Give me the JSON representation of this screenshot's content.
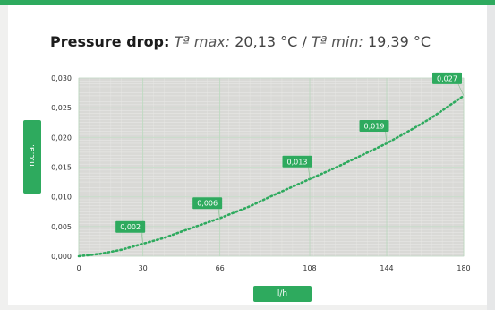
{
  "header": {
    "title_label": "Pressure drop:",
    "tmax_label": "Tª max:",
    "tmax_value": "20,13 °C",
    "separator": "/",
    "tmin_label": "Tª min:",
    "tmin_value": "19,39 °C"
  },
  "colors": {
    "accent": "#2eaa5e",
    "curve": "#2eaa5e",
    "plot_bg": "#d9d9d6"
  },
  "chart_data": {
    "type": "line",
    "title": "",
    "xlabel": "l/h",
    "ylabel": "m.c.a.",
    "xlim": [
      0,
      180
    ],
    "ylim": [
      0,
      0.03
    ],
    "x_ticks": [
      0,
      30,
      66,
      108,
      144,
      180
    ],
    "x_tick_labels": [
      "0",
      "30",
      "66",
      "108",
      "144",
      "180"
    ],
    "y_ticks": [
      0,
      0.005,
      0.01,
      0.015,
      0.02,
      0.025,
      0.03
    ],
    "y_tick_labels": [
      "0,000",
      "0,005",
      "0,010",
      "0,015",
      "0,020",
      "0,025",
      "0,030"
    ],
    "grid": true,
    "series": [
      {
        "style": "dotted",
        "x": [
          0,
          10,
          20,
          30,
          40,
          50,
          66,
          80,
          90,
          108,
          120,
          130,
          144,
          155,
          165,
          180
        ],
        "y": [
          0,
          0.0004,
          0.0011,
          0.0021,
          0.0031,
          0.0044,
          0.0064,
          0.0084,
          0.0101,
          0.013,
          0.0149,
          0.0166,
          0.019,
          0.0212,
          0.0233,
          0.027
        ]
      }
    ],
    "annotations": [
      {
        "x": 30,
        "y": 0.002,
        "text": "0,002"
      },
      {
        "x": 66,
        "y": 0.006,
        "text": "0,006"
      },
      {
        "x": 108,
        "y": 0.013,
        "text": "0,013"
      },
      {
        "x": 144,
        "y": 0.019,
        "text": "0,019"
      },
      {
        "x": 180,
        "y": 0.027,
        "text": "0,027"
      }
    ]
  }
}
